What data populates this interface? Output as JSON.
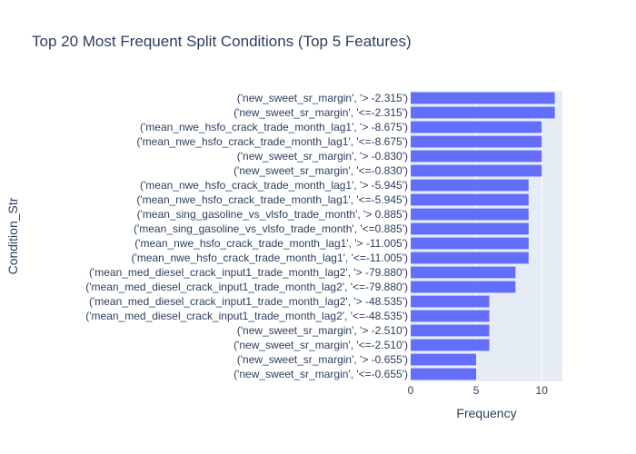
{
  "chart_data": {
    "type": "bar",
    "orientation": "horizontal",
    "title": "Top 20 Most Frequent Split Conditions (Top 5 Features)",
    "xlabel": "Frequency",
    "ylabel": "Condition_Str",
    "xlim": [
      0,
      11.58
    ],
    "x_ticks": [
      0,
      5,
      10
    ],
    "grid": true,
    "plot_bg": "#e5ecf6",
    "bar_color": "#636efa",
    "categories": [
      "('new_sweet_sr_margin', '> -2.315')",
      "('new_sweet_sr_margin', '<=-2.315')",
      "('mean_nwe_hsfo_crack_trade_month_lag1', '> -8.675')",
      "('mean_nwe_hsfo_crack_trade_month_lag1', '<=-8.675')",
      "('new_sweet_sr_margin', '> -0.830')",
      "('new_sweet_sr_margin', '<=-0.830')",
      "('mean_nwe_hsfo_crack_trade_month_lag1', '> -5.945')",
      "('mean_nwe_hsfo_crack_trade_month_lag1', '<=-5.945')",
      "('mean_sing_gasoline_vs_vlsfo_trade_month', '> 0.885')",
      "('mean_sing_gasoline_vs_vlsfo_trade_month', '<=0.885')",
      "('mean_nwe_hsfo_crack_trade_month_lag1', '> -11.005')",
      "('mean_nwe_hsfo_crack_trade_month_lag1', '<=-11.005')",
      "('mean_med_diesel_crack_input1_trade_month_lag2', '> -79.880')",
      "('mean_med_diesel_crack_input1_trade_month_lag2', '<=-79.880')",
      "('mean_med_diesel_crack_input1_trade_month_lag2', '> -48.535')",
      "('mean_med_diesel_crack_input1_trade_month_lag2', '<=-48.535')",
      "('new_sweet_sr_margin', '> -2.510')",
      "('new_sweet_sr_margin', '<=-2.510')",
      "('new_sweet_sr_margin', '> -0.655')",
      "('new_sweet_sr_margin', '<=-0.655')"
    ],
    "values": [
      11,
      11,
      10,
      10,
      10,
      10,
      9,
      9,
      9,
      9,
      9,
      9,
      8,
      8,
      6,
      6,
      6,
      6,
      5,
      5
    ]
  }
}
